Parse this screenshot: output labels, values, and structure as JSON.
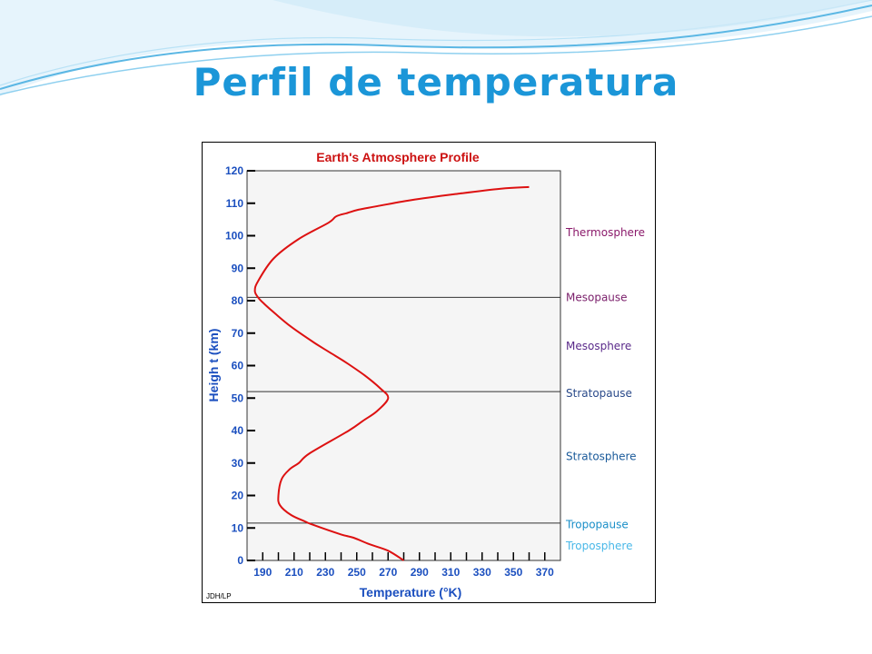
{
  "slide": {
    "title": "Perfil de temperatura"
  },
  "colors": {
    "title": "#1b96d8",
    "axis_text": "#1b4fbf",
    "curve": "#dd1111",
    "chart_title": "#cc1111",
    "header_wave": "#5bb7e4"
  },
  "chart_data": {
    "type": "line",
    "title": "Earth's Atmosphere Profile",
    "xlabel": "Temperature (°K)",
    "ylabel": "Heigh t (km)",
    "xlim": [
      180,
      380
    ],
    "ylim": [
      0,
      120
    ],
    "x_ticks": [
      190,
      210,
      230,
      250,
      270,
      290,
      310,
      330,
      350,
      370
    ],
    "y_ticks": [
      0,
      10,
      20,
      30,
      40,
      50,
      60,
      70,
      80,
      90,
      100,
      110,
      120
    ],
    "grid": false,
    "boundaries": [
      {
        "name": "Mesopause",
        "height": 81
      },
      {
        "name": "Stratopause",
        "height": 52
      },
      {
        "name": "Tropopause",
        "height": 11.5
      }
    ],
    "layer_labels": [
      {
        "text": "Thermosphere",
        "height": 101,
        "color": "#8b1a6b"
      },
      {
        "text": "Mesopause",
        "height": 81,
        "color": "#7a1e6a"
      },
      {
        "text": "Mesosphere",
        "height": 66,
        "color": "#5a2a8a"
      },
      {
        "text": "Stratopause",
        "height": 51.5,
        "color": "#2a4a8a"
      },
      {
        "text": "Stratosphere",
        "height": 32,
        "color": "#1a5a9a"
      },
      {
        "text": "Tropopause",
        "height": 11,
        "color": "#1a8fc8"
      },
      {
        "text": "Troposphere",
        "height": 4.5,
        "color": "#4ab8e8"
      }
    ],
    "credit": "JDH/LP",
    "series": [
      {
        "x": [
          280,
          270,
          258,
          248,
          240,
          222,
          217,
          208,
          201,
          200,
          202,
          207,
          213,
          220,
          245,
          254,
          263,
          270,
          265,
          255,
          243,
          233,
          223,
          208,
          198,
          191,
          187,
          185,
          187,
          197,
          213,
          232,
          237,
          244,
          251,
          262,
          285,
          316,
          342,
          360
        ],
        "y": [
          0,
          3,
          5,
          7,
          8,
          11,
          12,
          14,
          17,
          20,
          25,
          28,
          30,
          33,
          40,
          43,
          46,
          50,
          53,
          57,
          61,
          64,
          67,
          72,
          76,
          79,
          81,
          83,
          86,
          93,
          99,
          104,
          106,
          107,
          108,
          109,
          111,
          113,
          114.5,
          115
        ]
      }
    ]
  }
}
